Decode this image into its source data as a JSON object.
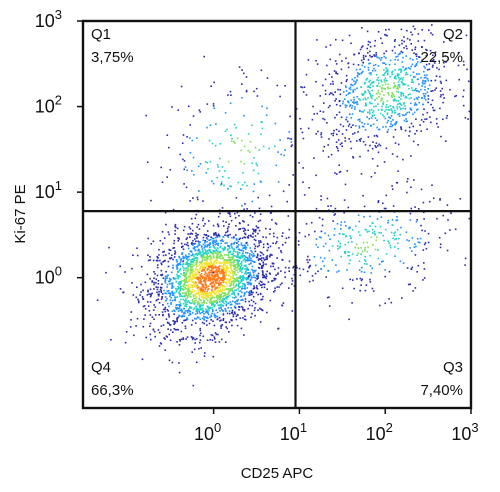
{
  "chart_data": {
    "type": "scatter",
    "subtype": "flow-cytometry density dot plot",
    "xlabel": "CD25 APC",
    "ylabel": "Ki-67 PE",
    "x_scale": "log",
    "y_scale": "log",
    "xlim": [
      0.03,
      1000
    ],
    "ylim": [
      0.03,
      1000
    ],
    "x_ticks": [
      {
        "base": "10",
        "exp": "0",
        "value": 1
      },
      {
        "base": "10",
        "exp": "1",
        "value": 10
      },
      {
        "base": "10",
        "exp": "2",
        "value": 100
      },
      {
        "base": "10",
        "exp": "3",
        "value": 1000
      }
    ],
    "y_ticks": [
      {
        "base": "10",
        "exp": "0",
        "value": 1
      },
      {
        "base": "10",
        "exp": "1",
        "value": 10
      },
      {
        "base": "10",
        "exp": "2",
        "value": 100
      },
      {
        "base": "10",
        "exp": "3",
        "value": 1000
      }
    ],
    "gates": {
      "x": 9,
      "y": 6
    },
    "quadrants": [
      {
        "id": "Q1",
        "label": "Q1",
        "percent": "3,75%",
        "position": "top-left"
      },
      {
        "id": "Q2",
        "label": "Q2",
        "percent": "22,5%",
        "position": "top-right"
      },
      {
        "id": "Q3",
        "label": "Q3",
        "percent": "7,40%",
        "position": "bottom-right"
      },
      {
        "id": "Q4",
        "label": "Q4",
        "percent": "66,3%",
        "position": "bottom-left"
      }
    ],
    "populations": [
      {
        "name_hidden": true,
        "center": [
          0.9,
          1.0
        ],
        "spread_log": [
          0.35,
          0.3
        ],
        "weight": 0.663
      },
      {
        "name_hidden": true,
        "center": [
          100,
          150
        ],
        "spread_log": [
          0.4,
          0.35
        ],
        "weight": 0.225
      },
      {
        "name_hidden": true,
        "center": [
          60,
          2.5
        ],
        "spread_log": [
          0.5,
          0.3
        ],
        "weight": 0.074
      },
      {
        "name_hidden": true,
        "center": [
          2,
          30
        ],
        "spread_log": [
          0.5,
          0.5
        ],
        "weight": 0.0375
      }
    ],
    "colormap": [
      "#2b2bb0",
      "#1e90ff",
      "#22d3c5",
      "#7fe05a",
      "#f2e22a",
      "#ff7a1a",
      "#e31a1c"
    ],
    "grid": false,
    "legend": "none"
  }
}
